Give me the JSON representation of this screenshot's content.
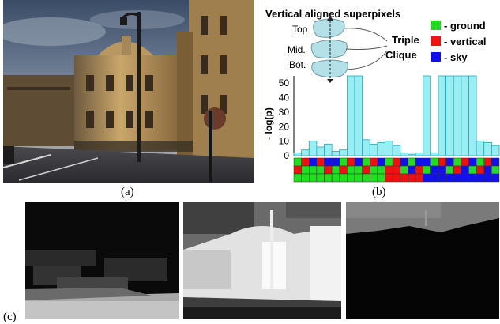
{
  "captions": {
    "a": "(a)",
    "b": "(b)",
    "c": "(c)"
  },
  "diagram": {
    "title": "Vertical aligned superpixels",
    "labels": {
      "top": "Top",
      "mid": "Mid.",
      "bot": "Bot."
    },
    "triple": "Triple",
    "clique": "Clique",
    "legend": [
      {
        "label": "- ground",
        "color": "#22dd22"
      },
      {
        "label": "- vertical",
        "color": "#ee1111"
      },
      {
        "label": "- sky",
        "color": "#1111ee"
      }
    ]
  },
  "chart_data": {
    "type": "bar",
    "ylabel": "- log(p)",
    "yticks": [
      0,
      10,
      20,
      30,
      40,
      50
    ],
    "ylim": [
      0,
      55
    ],
    "bar_color": "#99eef4",
    "values": [
      2,
      4,
      10,
      6,
      8,
      3,
      4,
      55,
      55,
      11,
      8,
      9,
      10,
      7,
      2,
      1,
      2,
      55,
      2,
      55,
      55,
      55,
      55,
      55,
      10,
      9,
      7
    ],
    "label_grid": [
      [
        "#22dd22",
        "#ee1111",
        "#1111ee",
        "#ee1111",
        "#1111ee",
        "#1111ee",
        "#22dd22",
        "#ee1111",
        "#1111ee",
        "#22dd22",
        "#ee1111",
        "#1111ee",
        "#22dd22",
        "#ee1111",
        "#1111ee",
        "#22dd22",
        "#1111ee",
        "#1111ee",
        "#22dd22",
        "#ee1111",
        "#1111ee",
        "#22dd22",
        "#ee1111",
        "#1111ee",
        "#22dd22",
        "#ee1111",
        "#1111ee"
      ],
      [
        "#ee1111",
        "#22dd22",
        "#22dd22",
        "#22dd22",
        "#ee1111",
        "#22dd22",
        "#ee1111",
        "#22dd22",
        "#22dd22",
        "#ee1111",
        "#22dd22",
        "#22dd22",
        "#ee1111",
        "#ee1111",
        "#22dd22",
        "#1111ee",
        "#ee1111",
        "#22dd22",
        "#1111ee",
        "#1111ee",
        "#22dd22",
        "#ee1111",
        "#1111ee",
        "#22dd22",
        "#ee1111",
        "#1111ee",
        "#22dd22"
      ],
      [
        "#22dd22",
        "#22dd22",
        "#22dd22",
        "#22dd22",
        "#22dd22",
        "#22dd22",
        "#22dd22",
        "#22dd22",
        "#22dd22",
        "#22dd22",
        "#22dd22",
        "#22dd22",
        "#ee1111",
        "#ee1111",
        "#ee1111",
        "#ee1111",
        "#ee1111",
        "#1111ee",
        "#1111ee",
        "#1111ee",
        "#1111ee",
        "#1111ee",
        "#1111ee",
        "#1111ee",
        "#1111ee",
        "#1111ee",
        "#1111ee"
      ]
    ]
  }
}
